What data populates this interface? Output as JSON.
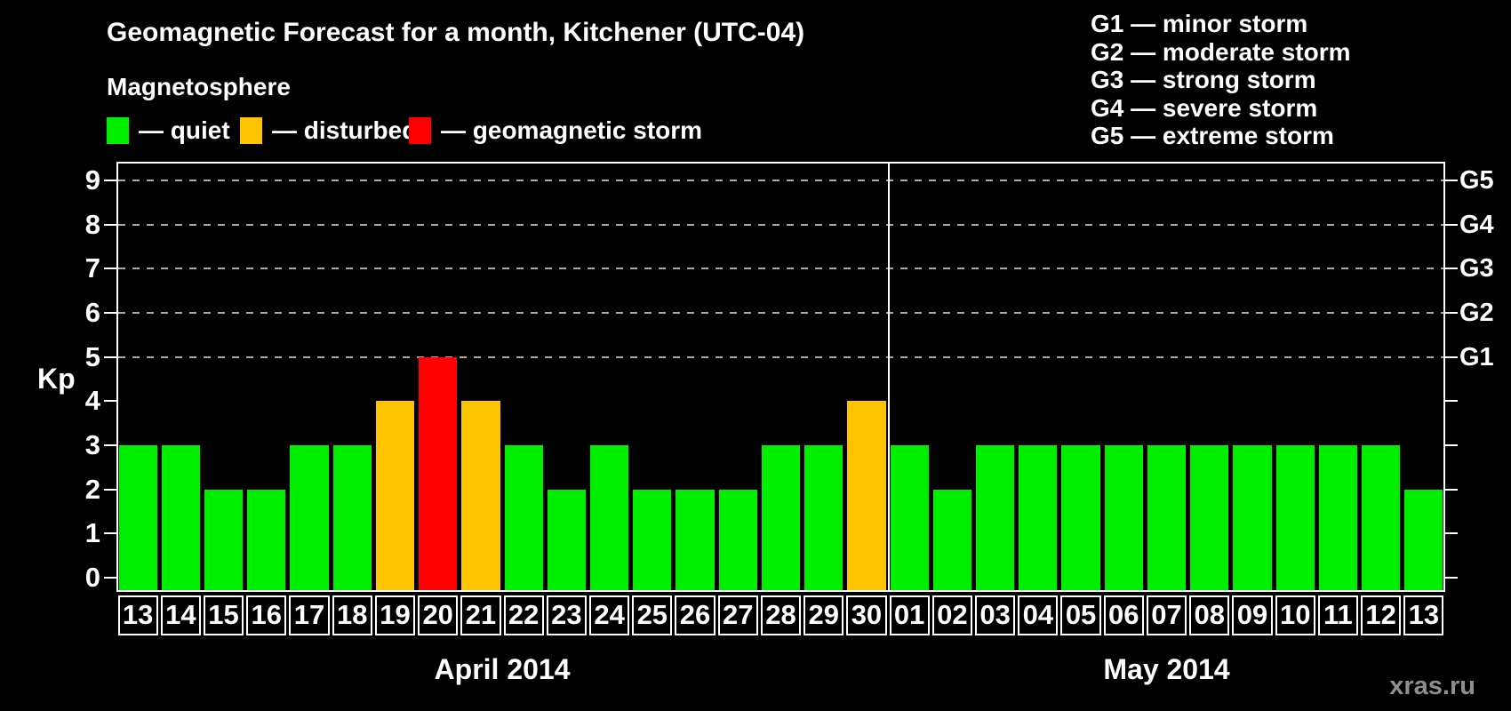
{
  "header": {
    "title": "Geomagnetic Forecast for a month, Kitchener (UTC-04)"
  },
  "magnetosphere": {
    "title": "Magnetosphere",
    "items": [
      {
        "key": "quiet",
        "label": "— quiet",
        "color": "#00ee00"
      },
      {
        "key": "disturbed",
        "label": "— disturbed",
        "color": "#ffc400"
      },
      {
        "key": "storm",
        "label": "— geomagnetic storm",
        "color": "#ff0000"
      }
    ]
  },
  "g_legend": {
    "items": [
      "G1 — minor storm",
      "G2 — moderate storm",
      "G3 — strong storm",
      "G4 — severe storm",
      "G5 — extreme storm"
    ]
  },
  "axes": {
    "y_label": "Kp",
    "y_ticks": [
      0,
      1,
      2,
      3,
      4,
      5,
      6,
      7,
      8,
      9
    ],
    "gridline_kps": [
      5,
      6,
      7,
      8,
      9
    ],
    "right_labels": [
      {
        "text": "G1",
        "kp": 5
      },
      {
        "text": "G2",
        "kp": 6
      },
      {
        "text": "G3",
        "kp": 7
      },
      {
        "text": "G4",
        "kp": 8
      },
      {
        "text": "G5",
        "kp": 9
      }
    ]
  },
  "watermark": "xras.ru",
  "chart_data": {
    "type": "bar",
    "title": "Geomagnetic Forecast for a month, Kitchener (UTC-04)",
    "ylabel": "Kp",
    "ylim": [
      0,
      9.4
    ],
    "grid": "dashed horizontal at Kp 5-9",
    "legend_position": "top",
    "status_colors": {
      "quiet": "#00ee00",
      "disturbed": "#ffc400",
      "storm": "#ff0000"
    },
    "months": [
      {
        "label": "April 2014",
        "days": [
          {
            "date": "13",
            "kp": 3,
            "status": "quiet"
          },
          {
            "date": "14",
            "kp": 3,
            "status": "quiet"
          },
          {
            "date": "15",
            "kp": 2,
            "status": "quiet"
          },
          {
            "date": "16",
            "kp": 2,
            "status": "quiet"
          },
          {
            "date": "17",
            "kp": 3,
            "status": "quiet"
          },
          {
            "date": "18",
            "kp": 3,
            "status": "quiet"
          },
          {
            "date": "19",
            "kp": 4,
            "status": "disturbed"
          },
          {
            "date": "20",
            "kp": 5,
            "status": "storm"
          },
          {
            "date": "21",
            "kp": 4,
            "status": "disturbed"
          },
          {
            "date": "22",
            "kp": 3,
            "status": "quiet"
          },
          {
            "date": "23",
            "kp": 2,
            "status": "quiet"
          },
          {
            "date": "24",
            "kp": 3,
            "status": "quiet"
          },
          {
            "date": "25",
            "kp": 2,
            "status": "quiet"
          },
          {
            "date": "26",
            "kp": 2,
            "status": "quiet"
          },
          {
            "date": "27",
            "kp": 2,
            "status": "quiet"
          },
          {
            "date": "28",
            "kp": 3,
            "status": "quiet"
          },
          {
            "date": "29",
            "kp": 3,
            "status": "quiet"
          },
          {
            "date": "30",
            "kp": 4,
            "status": "disturbed"
          }
        ]
      },
      {
        "label": "May 2014",
        "days": [
          {
            "date": "01",
            "kp": 3,
            "status": "quiet"
          },
          {
            "date": "02",
            "kp": 2,
            "status": "quiet"
          },
          {
            "date": "03",
            "kp": 3,
            "status": "quiet"
          },
          {
            "date": "04",
            "kp": 3,
            "status": "quiet"
          },
          {
            "date": "05",
            "kp": 3,
            "status": "quiet"
          },
          {
            "date": "06",
            "kp": 3,
            "status": "quiet"
          },
          {
            "date": "07",
            "kp": 3,
            "status": "quiet"
          },
          {
            "date": "08",
            "kp": 3,
            "status": "quiet"
          },
          {
            "date": "09",
            "kp": 3,
            "status": "quiet"
          },
          {
            "date": "10",
            "kp": 3,
            "status": "quiet"
          },
          {
            "date": "11",
            "kp": 3,
            "status": "quiet"
          },
          {
            "date": "12",
            "kp": 3,
            "status": "quiet"
          },
          {
            "date": "13",
            "kp": 2,
            "status": "quiet"
          }
        ]
      }
    ]
  }
}
